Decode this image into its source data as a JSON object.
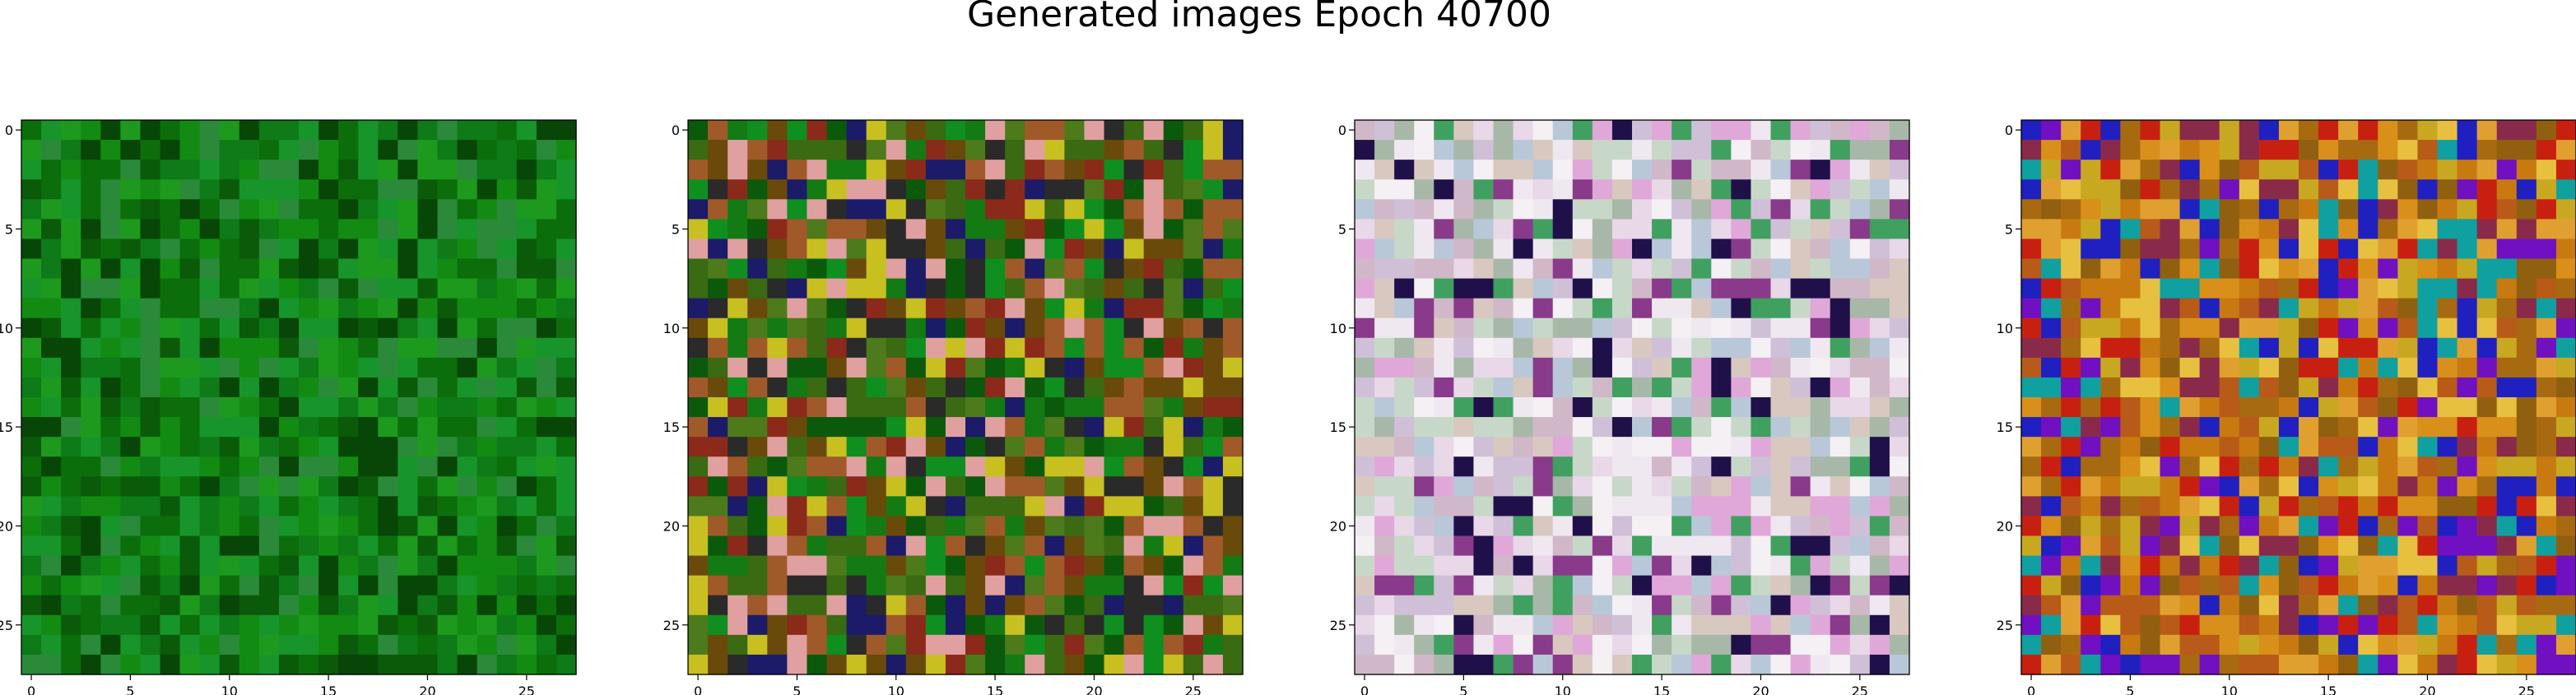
{
  "figure": {
    "title": "Generated images Epoch 40700"
  },
  "chart_data": [
    {
      "type": "heatmap",
      "title": "",
      "xlabel": "",
      "ylabel": "",
      "grid_size": 28,
      "xlim": [
        -0.5,
        27.5
      ],
      "ylim": [
        27.5,
        -0.5
      ],
      "x_ticks": [
        0,
        5,
        10,
        15,
        20,
        25
      ],
      "y_ticks": [
        0,
        5,
        10,
        15,
        20,
        25
      ],
      "grid": false,
      "palette": [
        "#0b6e0b",
        "#138b13",
        "#0a5a0a",
        "#1d9a1d",
        "#074607",
        "#2a8a3a",
        "#0e7a18",
        "#17952a"
      ]
    },
    {
      "type": "heatmap",
      "title": "",
      "xlabel": "",
      "ylabel": "",
      "grid_size": 28,
      "xlim": [
        -0.5,
        27.5
      ],
      "ylim": [
        27.5,
        -0.5
      ],
      "x_ticks": [
        0,
        5,
        10,
        15,
        20,
        25
      ],
      "y_ticks": [
        0,
        5,
        10,
        15,
        20,
        25
      ],
      "grid": false,
      "palette": [
        "#147a14",
        "#3a6a12",
        "#6a4a0a",
        "#8b2a1a",
        "#0f8f1f",
        "#4d7a1a",
        "#a05a2a",
        "#1b1b6a",
        "#c8c020",
        "#2a2a2a",
        "#0b5a0b",
        "#e0a0a0"
      ]
    },
    {
      "type": "heatmap",
      "title": "",
      "xlabel": "",
      "ylabel": "",
      "grid_size": 28,
      "xlim": [
        -0.5,
        27.5
      ],
      "ylim": [
        27.5,
        -0.5
      ],
      "x_ticks": [
        0,
        5,
        10,
        15,
        20,
        25
      ],
      "y_ticks": [
        0,
        5,
        10,
        15,
        20,
        25
      ],
      "grid": false,
      "palette": [
        "#e8d8e8",
        "#cfc0d8",
        "#f0e8f0",
        "#d8c8c0",
        "#e0a8d8",
        "#b8c8d8",
        "#c8d8c8",
        "#f4f0f4",
        "#a8b8a8",
        "#d0b8c8",
        "#20104a",
        "#40a060",
        "#8a3a8a"
      ]
    },
    {
      "type": "heatmap",
      "title": "",
      "xlabel": "",
      "ylabel": "",
      "grid_size": 28,
      "xlim": [
        -0.5,
        27.5
      ],
      "ylim": [
        27.5,
        -0.5
      ],
      "x_ticks": [
        0,
        5,
        10,
        15,
        20,
        25
      ],
      "y_ticks": [
        0,
        5,
        10,
        15,
        20,
        25
      ],
      "grid": false,
      "palette": [
        "#c87a10",
        "#d8901a",
        "#a86a10",
        "#e0a030",
        "#b85a18",
        "#c8a820",
        "#8a2a4a",
        "#2020c0",
        "#7010c0",
        "#c82010",
        "#10a0a0",
        "#906010",
        "#e8c040"
      ]
    }
  ]
}
